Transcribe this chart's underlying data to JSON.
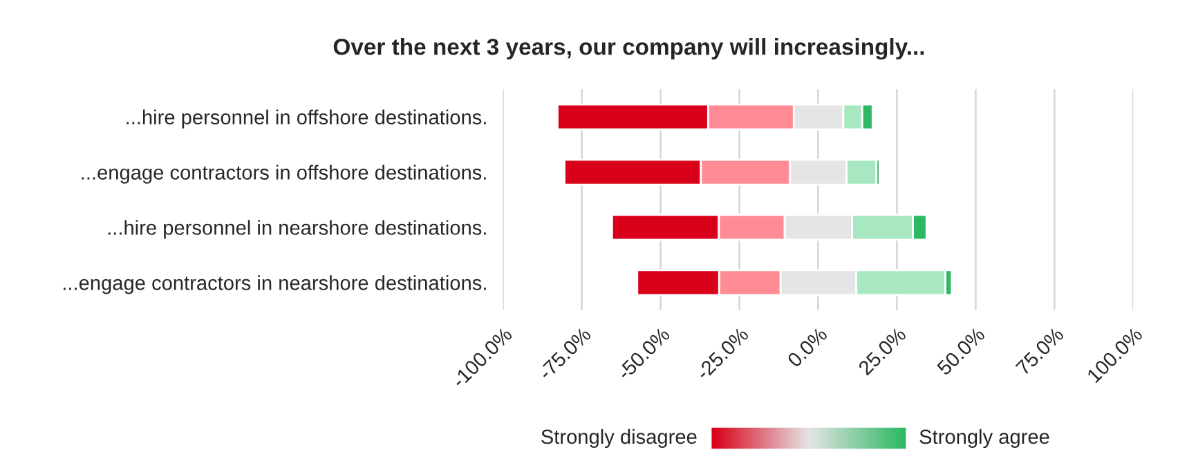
{
  "chart_data": {
    "type": "bar",
    "orientation": "horizontal",
    "title": "Over the next 3 years, our company will increasingly...",
    "categories": [
      "...hire personnel in offshore destinations.",
      "...engage contractors in offshore destinations.",
      "...hire personnel in nearshore destinations.",
      "...engage contractors in nearshore destinations."
    ],
    "series": [
      {
        "color": "#d9001a",
        "base": [
          -82.7,
          -80.5,
          -65.4,
          -57.4
        ],
        "values": [
          47.8,
          43.3,
          33.9,
          26.0
        ]
      },
      {
        "color": "#ff8c95",
        "base": [
          -34.9,
          -37.2,
          -31.5,
          -31.4
        ],
        "values": [
          27.2,
          28.3,
          20.9,
          19.5
        ]
      },
      {
        "color": "#e5e5e5",
        "base": [
          -7.7,
          -8.9,
          -10.6,
          -11.9
        ],
        "values": [
          15.7,
          17.9,
          21.4,
          24.0
        ]
      },
      {
        "color": "#a8e8c1",
        "base": [
          8.0,
          9.0,
          10.8,
          12.1
        ],
        "values": [
          6.0,
          9.5,
          19.3,
          28.3
        ]
      },
      {
        "color": "#2db964",
        "base": [
          14.0,
          18.5,
          30.1,
          40.4
        ],
        "values": [
          3.3,
          1.0,
          4.3,
          2.0
        ]
      }
    ],
    "xlim": [
      -100,
      100
    ],
    "xticks": [
      {
        "value": -100,
        "label": "-100.0%"
      },
      {
        "value": -75,
        "label": "-75.0%"
      },
      {
        "value": -50,
        "label": "-50.0%"
      },
      {
        "value": -25,
        "label": "-25.0%"
      },
      {
        "value": 0,
        "label": "0.0%"
      },
      {
        "value": 25,
        "label": "25.0%"
      },
      {
        "value": 50,
        "label": "50.0%"
      },
      {
        "value": 75,
        "label": "75.0%"
      },
      {
        "value": 100,
        "label": "100.0%"
      }
    ],
    "grid": "x",
    "annotations": [
      "Strongly disagree",
      "Strongly agree"
    ]
  }
}
